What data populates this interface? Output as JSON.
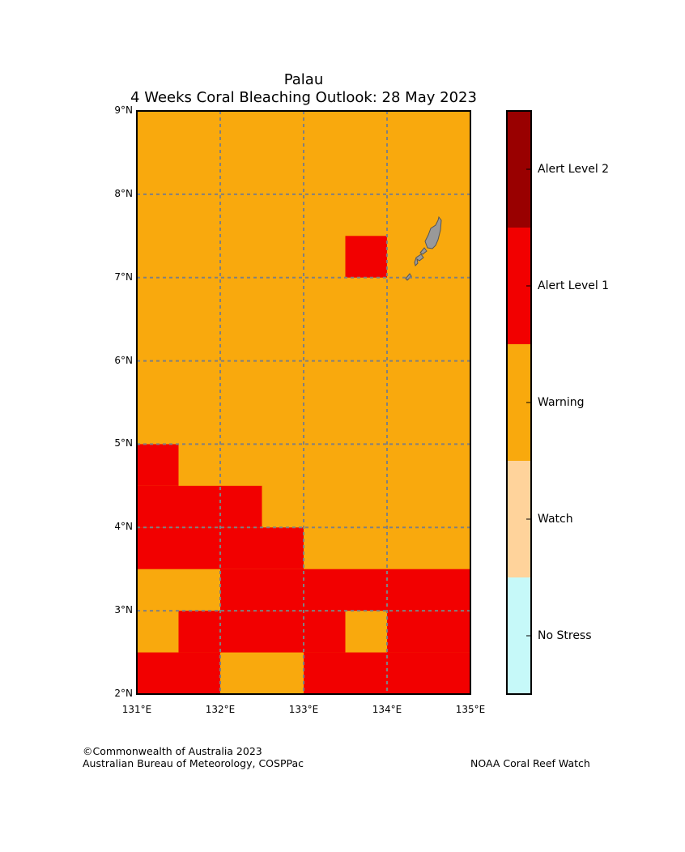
{
  "title": {
    "line1": "Palau",
    "line2": "4 Weeks Coral Bleaching Outlook: 28 May 2023"
  },
  "chart_data": {
    "type": "heatmap",
    "title": "Palau — 4 Weeks Coral Bleaching Outlook: 28 May 2023",
    "xlim": [
      131,
      135
    ],
    "ylim": [
      2,
      9
    ],
    "cell_size_deg": 0.5,
    "x_ticks": [
      131,
      132,
      133,
      134,
      135
    ],
    "y_ticks": [
      2,
      3,
      4,
      5,
      6,
      7,
      8,
      9
    ],
    "x_tick_labels": [
      "131°E",
      "132°E",
      "133°E",
      "134°E",
      "135°E"
    ],
    "y_tick_labels": [
      "2°N",
      "3°N",
      "4°N",
      "5°N",
      "6°N",
      "7°N",
      "8°N",
      "9°N"
    ],
    "background_level": "Warning",
    "alert_cells": [
      {
        "lon": [
          133.5,
          134.0
        ],
        "lat": [
          7.0,
          7.5
        ],
        "level": "Alert Level 1"
      },
      {
        "lon": [
          131.0,
          131.5
        ],
        "lat": [
          4.5,
          5.0
        ],
        "level": "Alert Level 1"
      },
      {
        "lon": [
          131.0,
          132.5
        ],
        "lat": [
          4.0,
          4.5
        ],
        "level": "Alert Level 1"
      },
      {
        "lon": [
          131.0,
          133.0
        ],
        "lat": [
          3.5,
          4.0
        ],
        "level": "Alert Level 1"
      },
      {
        "lon": [
          132.0,
          135.0
        ],
        "lat": [
          3.0,
          3.5
        ],
        "level": "Alert Level 1"
      },
      {
        "lon": [
          131.5,
          133.5
        ],
        "lat": [
          2.5,
          3.0
        ],
        "level": "Alert Level 1"
      },
      {
        "lon": [
          134.0,
          135.0
        ],
        "lat": [
          2.5,
          3.0
        ],
        "level": "Alert Level 1"
      },
      {
        "lon": [
          131.0,
          132.0
        ],
        "lat": [
          2.0,
          2.5
        ],
        "level": "Alert Level 1"
      },
      {
        "lon": [
          133.0,
          135.0
        ],
        "lat": [
          2.0,
          2.5
        ],
        "level": "Alert Level 1"
      }
    ],
    "legend": [
      {
        "label": "Alert Level 2",
        "color": "#990000"
      },
      {
        "label": "Alert Level 1",
        "color": "#f20000"
      },
      {
        "label": "Warning",
        "color": "#f9a90d"
      },
      {
        "label": "Watch",
        "color": "#ffd39b"
      },
      {
        "label": "No Stress",
        "color": "#c6f9f9"
      }
    ],
    "land_color": "#999999",
    "grid": true
  },
  "footer": {
    "copyright": "©Commonwealth of Australia 2023",
    "agency": "Australian Bureau of Meteorology, COSPPac",
    "partner": "NOAA Coral Reef Watch"
  }
}
